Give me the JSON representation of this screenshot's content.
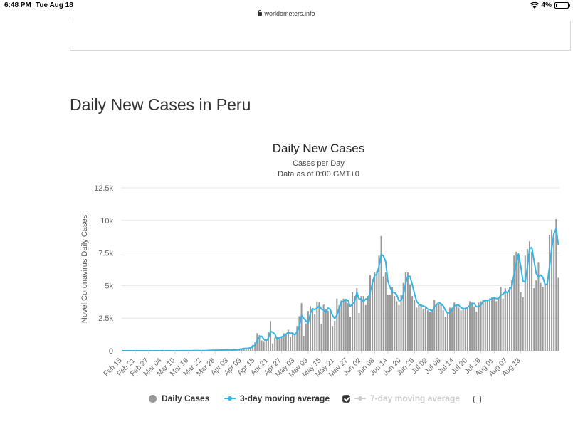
{
  "status_bar": {
    "time": "6:48 PM",
    "date": "Tue Aug 18",
    "battery": "4%",
    "battery_level": 0.04
  },
  "browser": {
    "url": "worldometers.info"
  },
  "section": {
    "title": "Daily New Cases in Peru"
  },
  "legend": {
    "daily_cases": "Daily Cases",
    "avg3": "3-day moving average",
    "avg7": "7-day moving average"
  },
  "colors": {
    "bars": "#999999",
    "avg3": "#33b6e5",
    "avg7_disabled": "#cccccc"
  },
  "chart_data": {
    "type": "bar",
    "title": "Daily New Cases",
    "subtitle": "Cases per Day",
    "subtitle2": "Data as of 0:00 GMT+0",
    "ylabel": "Novel Coronavirus Daily Cases",
    "xlabel": "",
    "ylim": [
      0,
      12500
    ],
    "y_ticks": [
      0,
      2500,
      5000,
      7500,
      10000,
      12500
    ],
    "y_tick_labels": [
      "0",
      "2.5k",
      "5k",
      "7.5k",
      "10k",
      "12.5k"
    ],
    "x_tick_labels": [
      "Feb 15",
      "Feb 21",
      "Feb 27",
      "Mar 04",
      "Mar 10",
      "Mar 16",
      "Mar 22",
      "Mar 28",
      "Apr 03",
      "Apr 09",
      "Apr 15",
      "Apr 21",
      "Apr 27",
      "May 03",
      "May 09",
      "May 15",
      "May 21",
      "May 27",
      "Jun 02",
      "Jun 08",
      "Jun 14",
      "Jun 20",
      "Jun 26",
      "Jul 02",
      "Jul 08",
      "Jul 14",
      "Jul 20",
      "Jul 26",
      "Aug 01",
      "Aug 07",
      "Aug 13"
    ],
    "x_start": "Feb 15",
    "x_end": "Aug 17",
    "grid": true,
    "legend_position": "bottom",
    "series": [
      {
        "name": "Daily Cases",
        "type": "bar",
        "values": [
          0,
          0,
          0,
          0,
          0,
          0,
          0,
          0,
          0,
          0,
          0,
          0,
          0,
          0,
          0,
          0,
          0,
          0,
          0,
          0,
          0,
          0,
          0,
          1,
          1,
          2,
          4,
          5,
          5,
          2,
          6,
          10,
          15,
          17,
          13,
          18,
          19,
          12,
          25,
          40,
          45,
          40,
          30,
          60,
          65,
          45,
          70,
          85,
          60,
          40,
          65,
          75,
          95,
          165,
          170,
          185,
          205,
          190,
          270,
          430,
          640,
          1350,
          1200,
          790,
          680,
          740,
          1440,
          2270,
          560,
          1010,
          1070,
          970,
          1120,
          1340,
          1330,
          1610,
          1070,
          1400,
          1140,
          1900,
          2650,
          3650,
          1150,
          2100,
          3050,
          3420,
          3230,
          2800,
          3780,
          3740,
          2050,
          3540,
          3200,
          3060,
          3200,
          1900,
          2300,
          4000,
          3500,
          3860,
          4000,
          3950,
          3650,
          2600,
          4500,
          4200,
          4800,
          2900,
          4200,
          4200,
          3500,
          4200,
          5800,
          5500,
          6000,
          6100,
          7300,
          8800,
          5700,
          6000,
          4300,
          4300,
          4900,
          4200,
          3800,
          3500,
          4300,
          5200,
          6000,
          6000,
          5100,
          4200,
          3900,
          3300,
          3500,
          3600,
          3200,
          3300,
          3100,
          3000,
          3100,
          3900,
          3600,
          3600,
          3600,
          3100,
          2600,
          2900,
          3300,
          3300,
          3700,
          3500,
          3300,
          3100,
          3300,
          3300,
          3300,
          3800,
          3700,
          3400,
          3000,
          3700,
          3800,
          3900,
          3800,
          3900,
          4000,
          4100,
          4100,
          3800,
          4100,
          4900,
          4000,
          4800,
          4500,
          4900,
          5400,
          7300,
          7600,
          7400,
          4500,
          4100,
          7300,
          7800,
          8400,
          7600,
          4800,
          5400,
          6800,
          5200,
          4900,
          5100,
          5400,
          8900,
          9300,
          8700,
          10100,
          5600
        ]
      },
      {
        "name": "3-day moving average",
        "type": "line",
        "values": [
          0,
          0,
          0,
          0,
          0,
          0,
          0,
          0,
          0,
          0,
          0,
          0,
          0,
          0,
          0,
          0,
          0,
          0,
          0,
          0,
          0,
          0,
          0,
          1,
          1,
          2,
          3,
          4,
          5,
          4,
          4,
          6,
          10,
          14,
          15,
          16,
          17,
          16,
          19,
          26,
          37,
          42,
          38,
          43,
          52,
          57,
          60,
          67,
          72,
          62,
          55,
          60,
          78,
          112,
          143,
          173,
          187,
          193,
          222,
          297,
          447,
          807,
          1063,
          1113,
          890,
          737,
          953,
          1483,
          1423,
          1280,
          880,
          1017,
          1053,
          1143,
          1263,
          1427,
          1337,
          1360,
          1203,
          1480,
          1897,
          2733,
          2483,
          2300,
          2100,
          2857,
          3233,
          3150,
          3270,
          3440,
          3190,
          3110,
          2930,
          3267,
          3153,
          2720,
          2467,
          2733,
          3267,
          3787,
          3787,
          3937,
          3867,
          3400,
          3583,
          3767,
          4500,
          3967,
          3967,
          3767,
          3967,
          3967,
          4500,
          5167,
          5767,
          5867,
          6467,
          7400,
          7267,
          6833,
          5333,
          4867,
          4500,
          4467,
          4300,
          3833,
          3867,
          4333,
          5167,
          5733,
          5700,
          5100,
          4400,
          3800,
          3567,
          3467,
          3433,
          3367,
          3200,
          3133,
          3067,
          3333,
          3533,
          3700,
          3600,
          3433,
          3100,
          2867,
          2933,
          3167,
          3433,
          3500,
          3500,
          3300,
          3233,
          3233,
          3300,
          3467,
          3600,
          3633,
          3367,
          3367,
          3500,
          3800,
          3833,
          3867,
          3900,
          4000,
          4067,
          4000,
          4000,
          4267,
          4333,
          4567,
          4433,
          4733,
          4933,
          5867,
          6767,
          7433,
          6500,
          5333,
          5300,
          6400,
          7833,
          7933,
          6933,
          5933,
          5667,
          5800,
          5633,
          5067,
          5133,
          6467,
          7867,
          8967,
          9367,
          8133
        ]
      }
    ]
  }
}
